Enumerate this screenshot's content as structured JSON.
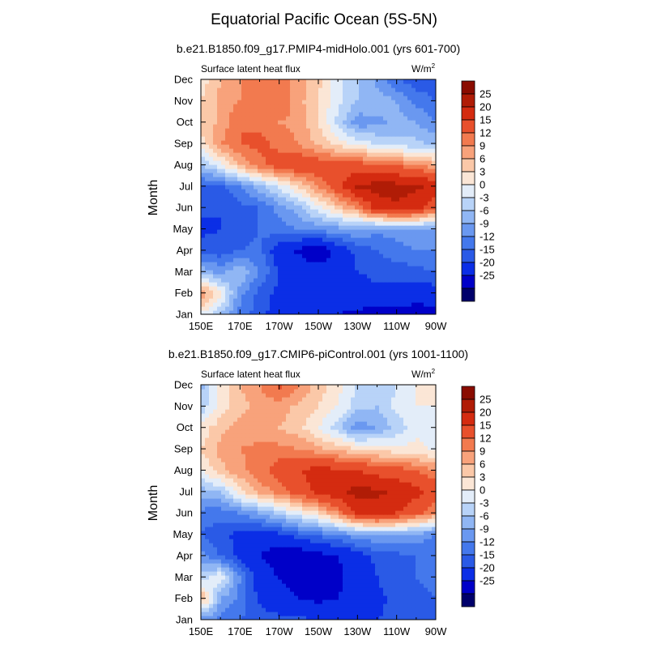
{
  "title": "Equatorial Pacific Ocean (5S-5N)",
  "colors": {
    "palette": [
      "#00006b",
      "#0000c8",
      "#0b2ee6",
      "#2a5ae6",
      "#4478ec",
      "#6a98f0",
      "#90b6f4",
      "#b8d3f8",
      "#e3edf9",
      "#fbe6d6",
      "#fbc8a8",
      "#f8a27b",
      "#f27a4f",
      "#e8502c",
      "#d42b10",
      "#b01c06",
      "#8a0c00"
    ]
  },
  "panels": [
    {
      "subtitle": "b.e21.B1850.f09_g17.PMIP4-midHolo.001 (yrs 601-700)",
      "variable_label": "Surface latent heat flux",
      "units_label": "W/m",
      "units_sup": "2"
    },
    {
      "subtitle": "b.e21.B1850.f09_g17.CMIP6-piControl.001 (yrs 1001-1100)",
      "variable_label": "Surface latent heat flux",
      "units_label": "W/m",
      "units_sup": "2"
    }
  ],
  "chart_data": [
    {
      "type": "heatmap",
      "subtitle": "b.e21.B1850.f09_g17.PMIP4-midHolo.001 (yrs 601-700)",
      "ylabel": "Month",
      "x_ticks": [
        "150E",
        "170E",
        "170W",
        "150W",
        "130W",
        "110W",
        "90W"
      ],
      "y_ticks": [
        "Jan",
        "Feb",
        "Mar",
        "Apr",
        "May",
        "Jun",
        "Jul",
        "Aug",
        "Sep",
        "Oct",
        "Nov",
        "Dec"
      ],
      "x": [
        "150E",
        "160E",
        "170E",
        "180",
        "170W",
        "160W",
        "150W",
        "140W",
        "130W",
        "120W",
        "110W",
        "100W",
        "90W"
      ],
      "y": [
        "Jan",
        "Feb",
        "Mar",
        "Apr",
        "May",
        "Jun",
        "Jul",
        "Aug",
        "Sep",
        "Oct",
        "Nov",
        "Dec"
      ],
      "z": [
        [
          2,
          -3,
          -10,
          -14,
          -17,
          -18,
          -19,
          -20,
          -21,
          -22,
          -23,
          -23,
          -22
        ],
        [
          12,
          4,
          -8,
          -13,
          -16,
          -17,
          -18,
          -18,
          -17,
          -16,
          -16,
          -17,
          -17
        ],
        [
          -4,
          -7,
          -3,
          -9,
          -15,
          -16,
          -18,
          -17,
          -15,
          -14,
          -14,
          -13,
          -12
        ],
        [
          -13,
          -14,
          -12,
          -11,
          -18,
          -21,
          -24,
          -18,
          -14,
          -12,
          -10,
          -9,
          -9
        ],
        [
          -16,
          -15,
          -14,
          -12,
          -10,
          -9,
          -8,
          -7,
          -6,
          -8,
          -8,
          -7,
          -7
        ],
        [
          -14,
          -15,
          -13,
          -12,
          -8,
          -4,
          2,
          7,
          12,
          22,
          24,
          22,
          15
        ],
        [
          -12,
          -13,
          -9,
          -4,
          1,
          6,
          12,
          18,
          26,
          27,
          27,
          26,
          24
        ],
        [
          -4,
          2,
          9,
          14,
          17,
          19,
          18,
          17,
          17,
          16,
          15,
          12,
          10
        ],
        [
          5,
          12,
          15,
          16,
          14,
          12,
          8,
          5,
          2,
          0,
          -2,
          -2,
          -4
        ],
        [
          6,
          10,
          15,
          14,
          12,
          11,
          6,
          -1,
          -8,
          -7,
          -5,
          -6,
          -9
        ],
        [
          6,
          10,
          12,
          13,
          15,
          10,
          6,
          1,
          -3,
          -4,
          -6,
          -10,
          -12
        ],
        [
          4,
          9,
          12,
          14,
          13,
          11,
          7,
          1,
          -3,
          -7,
          -12,
          -14,
          -14
        ]
      ],
      "levels": [
        -25,
        -20,
        -15,
        -12,
        -9,
        -6,
        -3,
        0,
        3,
        6,
        9,
        12,
        15,
        20,
        25
      ],
      "colorbar_labels": [
        "25",
        "20",
        "15",
        "12",
        "9",
        "6",
        "3",
        "0",
        "-3",
        "-6",
        "-9",
        "-12",
        "-15",
        "-20",
        "-25"
      ],
      "xlim": [
        150,
        270
      ],
      "ylim": [
        1,
        12
      ]
    },
    {
      "type": "heatmap",
      "subtitle": "b.e21.B1850.f09_g17.CMIP6-piControl.001 (yrs 1001-1100)",
      "ylabel": "Month",
      "x_ticks": [
        "150E",
        "170E",
        "170W",
        "150W",
        "130W",
        "110W",
        "90W"
      ],
      "y_ticks": [
        "Jan",
        "Feb",
        "Mar",
        "Apr",
        "May",
        "Jun",
        "Jul",
        "Aug",
        "Sep",
        "Oct",
        "Nov",
        "Dec"
      ],
      "x": [
        "150E",
        "160E",
        "170E",
        "180",
        "170W",
        "160W",
        "150W",
        "140W",
        "130W",
        "120W",
        "110W",
        "100W",
        "90W"
      ],
      "y": [
        "Jan",
        "Feb",
        "Mar",
        "Apr",
        "May",
        "Jun",
        "Jul",
        "Aug",
        "Sep",
        "Oct",
        "Nov",
        "Dec"
      ],
      "z": [
        [
          -8,
          -10,
          -12,
          -13,
          -14,
          -14,
          -15,
          -16,
          -16,
          -15,
          -14,
          -13,
          -12
        ],
        [
          10,
          -6,
          -10,
          -16,
          -18,
          -20,
          -21,
          -20,
          -18,
          -16,
          -14,
          -13,
          -12
        ],
        [
          -2,
          3,
          -9,
          -17,
          -20,
          -22,
          -23,
          -21,
          -18,
          -15,
          -13,
          -12,
          -11
        ],
        [
          -8,
          -12,
          -16,
          -20,
          -23,
          -24,
          -22,
          -20,
          -17,
          -14,
          -13,
          -12,
          -12
        ],
        [
          -12,
          -14,
          -16,
          -18,
          -16,
          -13,
          -11,
          -9,
          -7,
          -6,
          -6,
          -7,
          -9
        ],
        [
          -10,
          -11,
          -9,
          -6,
          -2,
          2,
          6,
          12,
          21,
          22,
          20,
          16,
          12
        ],
        [
          -5,
          -3,
          5,
          10,
          13,
          17,
          21,
          24,
          27,
          26,
          24,
          22,
          18
        ],
        [
          3,
          8,
          11,
          14,
          17,
          20,
          22,
          21,
          20,
          18,
          17,
          15,
          12
        ],
        [
          6,
          10,
          12,
          13,
          13,
          12,
          10,
          8,
          6,
          5,
          4,
          4,
          2
        ],
        [
          4,
          8,
          10,
          10,
          9,
          7,
          3,
          -2,
          -8,
          -6,
          -2,
          2,
          3
        ],
        [
          -2,
          4,
          8,
          10,
          11,
          8,
          6,
          3,
          -2,
          -3,
          1,
          3,
          3
        ],
        [
          -4,
          4,
          9,
          12,
          16,
          12,
          8,
          4,
          0,
          -3,
          0,
          3,
          4
        ]
      ],
      "levels": [
        -25,
        -20,
        -15,
        -12,
        -9,
        -6,
        -3,
        0,
        3,
        6,
        9,
        12,
        15,
        20,
        25
      ],
      "colorbar_labels": [
        "25",
        "20",
        "15",
        "12",
        "9",
        "6",
        "3",
        "0",
        "-3",
        "-6",
        "-9",
        "-12",
        "-15",
        "-20",
        "-25"
      ],
      "xlim": [
        150,
        270
      ],
      "ylim": [
        1,
        12
      ]
    }
  ]
}
